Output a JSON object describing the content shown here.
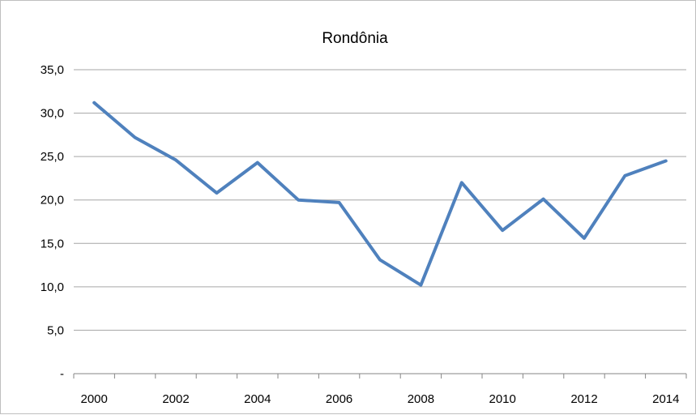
{
  "chart_data": {
    "type": "line",
    "title": "Rondônia",
    "xlabel": "",
    "ylabel": "",
    "x": [
      2000,
      2001,
      2002,
      2003,
      2004,
      2005,
      2006,
      2007,
      2008,
      2009,
      2010,
      2011,
      2012,
      2013,
      2014
    ],
    "x_tick_labels": [
      "2000",
      "2002",
      "2004",
      "2006",
      "2008",
      "2010",
      "2012",
      "2014"
    ],
    "y_tick_labels": [
      "-",
      "5,0",
      "10,0",
      "15,0",
      "20,0",
      "25,0",
      "30,0",
      "35,0"
    ],
    "ylim": [
      0,
      35
    ],
    "y_tick_step": 5,
    "grid": "horizontal",
    "series": [
      {
        "values": [
          31.2,
          27.2,
          24.6,
          20.8,
          24.3,
          20.0,
          19.7,
          13.1,
          10.2,
          22.0,
          16.5,
          20.1,
          15.6,
          22.8,
          24.5
        ],
        "color": "#4f81bd"
      }
    ]
  }
}
